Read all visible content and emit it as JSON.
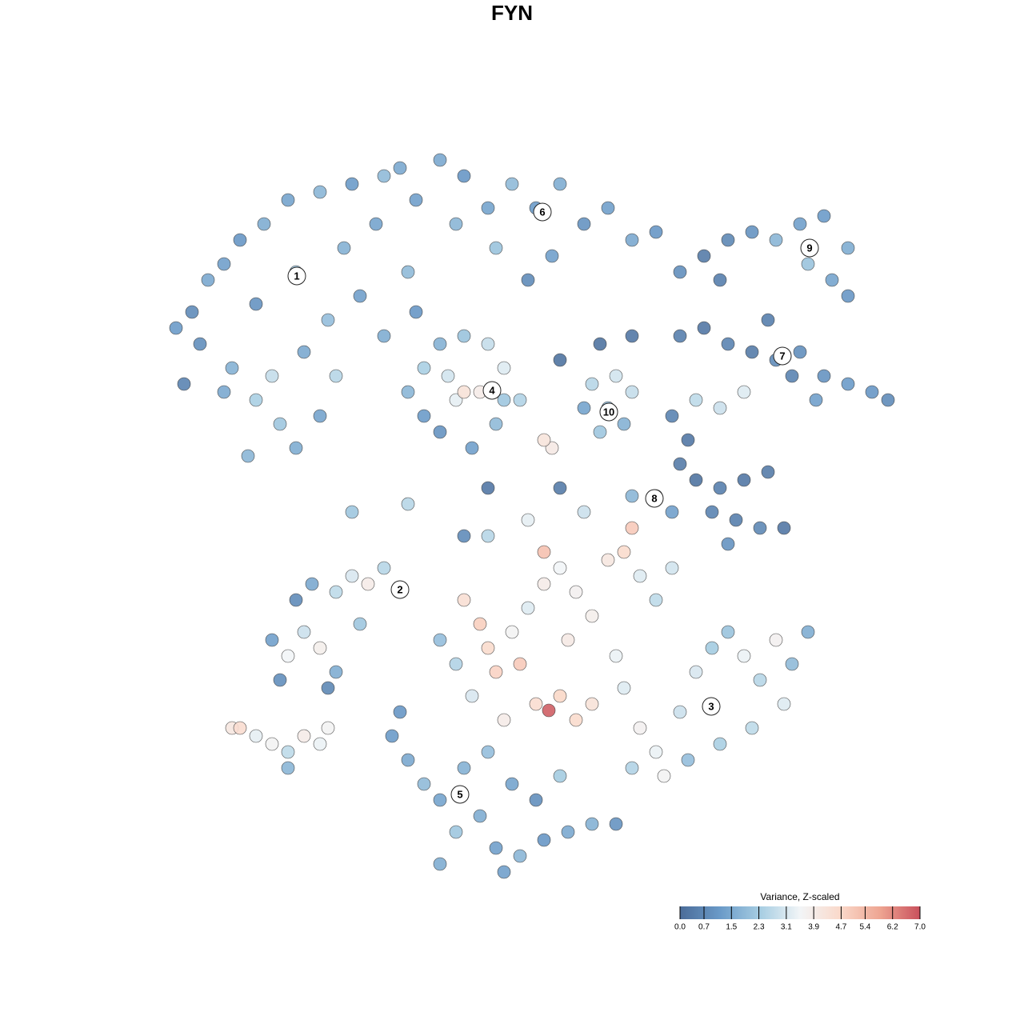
{
  "chart_data": {
    "type": "scatter",
    "title": "FYN",
    "xlim": [
      18,
      114
    ],
    "ylim": [
      0,
      92
    ],
    "x": [
      22,
      24,
      26,
      28,
      30,
      33,
      36,
      40,
      44,
      48,
      50,
      25,
      29,
      32,
      35,
      37,
      34,
      38,
      41,
      45,
      37,
      32,
      43,
      47,
      51,
      52,
      48,
      42,
      40,
      31,
      28,
      23,
      52,
      55,
      58,
      61,
      64,
      67,
      70,
      73,
      76,
      79,
      82,
      85,
      62,
      69,
      57,
      66,
      88,
      91,
      94,
      97,
      100,
      103,
      106,
      104,
      101,
      90,
      106,
      85,
      88,
      91,
      94,
      97,
      100,
      103,
      106,
      109,
      111,
      96,
      102,
      99,
      75,
      79,
      70,
      51,
      53,
      55,
      58,
      61,
      63,
      65,
      62,
      59,
      55,
      57,
      60,
      58,
      53,
      56,
      63,
      74,
      77,
      79,
      76,
      75,
      78,
      73,
      84,
      86,
      87,
      90,
      93,
      85,
      87,
      90,
      93,
      96,
      89,
      92,
      95,
      98,
      91,
      79,
      82,
      84,
      34,
      36,
      38,
      40,
      42,
      35,
      37,
      39,
      42,
      44,
      46,
      48,
      50,
      41,
      45,
      58,
      60,
      61,
      62,
      64,
      66,
      68,
      70,
      72,
      74,
      76,
      78,
      80,
      82,
      84,
      68,
      65,
      67,
      68.6,
      70,
      72,
      74,
      63,
      57,
      59,
      77,
      71,
      66,
      73,
      79,
      61,
      55,
      78,
      80,
      82,
      85,
      87,
      89,
      91,
      93,
      95,
      97,
      99,
      101,
      98,
      94,
      90,
      86,
      83,
      79,
      49,
      51,
      53,
      55,
      57,
      60,
      62,
      65,
      68,
      71,
      74,
      77,
      58,
      61,
      64,
      67,
      70,
      55,
      50,
      63,
      29,
      30,
      32,
      34,
      36,
      38,
      40,
      41,
      36,
      44,
      51,
      61,
      69,
      68,
      70,
      58
    ],
    "y": [
      69,
      71,
      75,
      77,
      80,
      82,
      85,
      86,
      87,
      88,
      89,
      67,
      64,
      60,
      57,
      54,
      63,
      66,
      70,
      73,
      76,
      72,
      79,
      82,
      76,
      71,
      68,
      63,
      58,
      53,
      61,
      62,
      85,
      90,
      88,
      84,
      87,
      84,
      87,
      82,
      84,
      80,
      81,
      76,
      79,
      78,
      82,
      75,
      78,
      80,
      81,
      80,
      82,
      83,
      79,
      75,
      77,
      75,
      73,
      68,
      69,
      67,
      66,
      65,
      66,
      63,
      62,
      61,
      60,
      70,
      60,
      63,
      67,
      68,
      65,
      61,
      64,
      67,
      68,
      67,
      64,
      60,
      57,
      54,
      56,
      60,
      61,
      61,
      58,
      63,
      60,
      62,
      63,
      61,
      59,
      56,
      57,
      59,
      58,
      55,
      60,
      59,
      61,
      52,
      50,
      49,
      50,
      51,
      46,
      45,
      44,
      44,
      42,
      48,
      48,
      46,
      30,
      28,
      31,
      29,
      26,
      25,
      35,
      37,
      36,
      38,
      37,
      39,
      36,
      24,
      32,
      35,
      32,
      29,
      26,
      31,
      34,
      37,
      39,
      36,
      33,
      40,
      41,
      38,
      35,
      39,
      41,
      27,
      22,
      21.2,
      23,
      20,
      22,
      20,
      27,
      23,
      28,
      30,
      45,
      46,
      44,
      43,
      30,
      24,
      19,
      16,
      21,
      26,
      29,
      31,
      28,
      25,
      30,
      27,
      31,
      22,
      19,
      17,
      15,
      13,
      14,
      18,
      15,
      12,
      10,
      6,
      8,
      4,
      3,
      5,
      6,
      7,
      7,
      14,
      16,
      12,
      10,
      13,
      2,
      21,
      1,
      19,
      19,
      18,
      17,
      16,
      18,
      17,
      19,
      14,
      46,
      47,
      49,
      54,
      55,
      49,
      43
    ],
    "values": [
      1.2,
      0.8,
      1.5,
      1.3,
      1.1,
      1.6,
      1.4,
      1.8,
      1.2,
      1.9,
      1.5,
      0.9,
      1.7,
      2.4,
      2.2,
      1.6,
      2.8,
      1.5,
      2.0,
      1.3,
      2.1,
      1.0,
      1.7,
      1.4,
      1.9,
      1.1,
      1.6,
      2.6,
      1.4,
      1.8,
      1.5,
      0.6,
      1.3,
      1.5,
      1.1,
      1.4,
      1.9,
      1.2,
      1.6,
      1.0,
      1.3,
      1.5,
      1.1,
      0.9,
      2.1,
      1.3,
      1.8,
      0.8,
      0.4,
      0.7,
      1.0,
      1.8,
      1.3,
      1.2,
      1.6,
      1.4,
      2.1,
      0.5,
      1.1,
      0.5,
      0.3,
      0.6,
      0.4,
      0.8,
      0.9,
      1.0,
      1.2,
      1.1,
      0.8,
      0.5,
      1.3,
      0.6,
      0.2,
      0.3,
      0.2,
      1.8,
      2.4,
      1.7,
      2.1,
      2.8,
      3.2,
      2.5,
      1.9,
      1.3,
      1.0,
      3.3,
      3.9,
      4.3,
      1.2,
      3.0,
      2.2,
      2.6,
      3.0,
      2.8,
      1.9,
      2.2,
      1.7,
      1.4,
      0.6,
      0.3,
      2.7,
      2.9,
      3.2,
      0.4,
      0.2,
      0.5,
      0.3,
      0.4,
      0.6,
      0.5,
      0.7,
      0.3,
      1.0,
      1.8,
      2.4,
      1.3,
      1.3,
      3.5,
      2.9,
      3.8,
      1.6,
      0.9,
      0.8,
      1.5,
      2.7,
      3.1,
      3.9,
      2.6,
      1.1,
      0.7,
      2.2,
      4.4,
      4.9,
      4.6,
      4.8,
      3.6,
      3.2,
      3.9,
      3.5,
      3.7,
      3.8,
      4.1,
      4.6,
      3.2,
      2.7,
      3.0,
      5.2,
      5.0,
      4.5,
      6.8,
      4.7,
      4.6,
      4.3,
      3.9,
      2.5,
      3.1,
      3.4,
      4.0,
      3.3,
      2.9,
      5.0,
      2.6,
      2.0,
      3.2,
      3.7,
      3.4,
      2.9,
      3.1,
      2.3,
      2.1,
      3.4,
      2.6,
      3.7,
      1.9,
      1.6,
      3.2,
      2.7,
      2.4,
      2.0,
      3.6,
      2.5,
      1.2,
      1.5,
      1.9,
      1.4,
      2.2,
      1.6,
      1.3,
      1.8,
      1.1,
      1.5,
      1.7,
      1.0,
      1.7,
      2.0,
      1.4,
      0.9,
      2.3,
      1.6,
      1.1,
      1.3,
      4.1,
      4.5,
      3.3,
      3.6,
      2.7,
      3.9,
      3.4,
      3.6,
      1.8,
      2.2,
      2.6,
      0.3,
      4.0,
      4.2,
      0.4,
      0.8
    ],
    "annotations": [
      {
        "label": "1",
        "x": 37.1,
        "y": 75.5
      },
      {
        "label": "6",
        "x": 67.8,
        "y": 83.5
      },
      {
        "label": "9",
        "x": 101.2,
        "y": 79
      },
      {
        "label": "7",
        "x": 97.8,
        "y": 65.5
      },
      {
        "label": "4",
        "x": 61.5,
        "y": 61.2
      },
      {
        "label": "10",
        "x": 76.1,
        "y": 58.5
      },
      {
        "label": "8",
        "x": 81.8,
        "y": 47.7
      },
      {
        "label": "2",
        "x": 50,
        "y": 36.3
      },
      {
        "label": "3",
        "x": 88.9,
        "y": 21.7
      },
      {
        "label": "5",
        "x": 57.5,
        "y": 10.7
      }
    ],
    "colorbar": {
      "title": "Variance, Z-scaled",
      "lim": [
        0,
        7
      ],
      "ticks": [
        {
          "value": 0,
          "label": "0.0"
        },
        0.7,
        1.5,
        2.3,
        3.1,
        3.9,
        4.7,
        5.4,
        6.2,
        {
          "value": 7,
          "label": "7.0"
        }
      ],
      "colors": [
        "#4b6c99",
        "#6a9ac8",
        "#a6cde2",
        "#f2f5f7",
        "#fad9ca",
        "#eea592",
        "#c9505c"
      ]
    }
  }
}
